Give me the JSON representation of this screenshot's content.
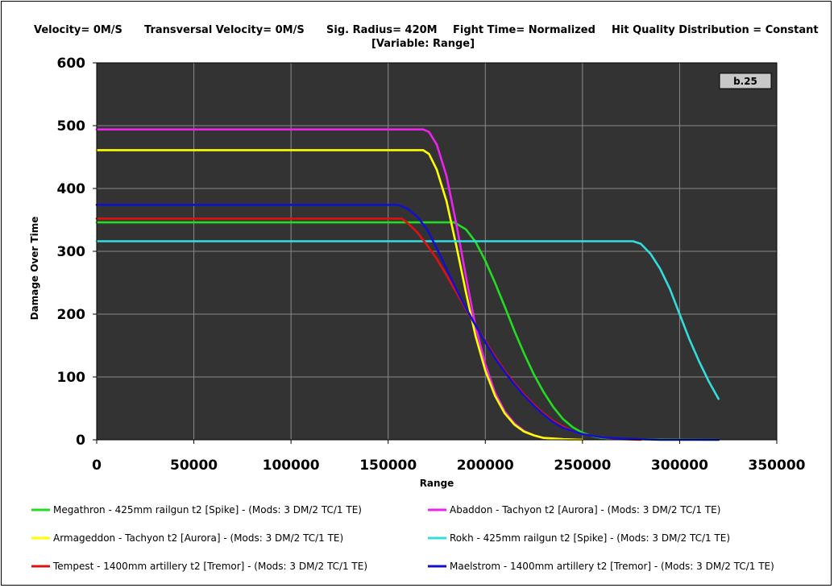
{
  "header": {
    "items": [
      "Velocity= 0M/S",
      "Transversal Velocity= 0M/S",
      "Sig. Radius= 420M",
      "Fight Time= Normalized",
      "Hit Quality Distribution = Constant"
    ],
    "subtitle": "[Variable: Range]"
  },
  "badge": {
    "label": "b.25"
  },
  "chart_data": {
    "type": "line",
    "xlabel": "Range",
    "ylabel": "Damage Over Time",
    "xlim": [
      0,
      350000
    ],
    "ylim": [
      0,
      600
    ],
    "xticks": [
      "0",
      "50000",
      "100000",
      "150000",
      "200000",
      "250000",
      "300000",
      "350000"
    ],
    "yticks": [
      "0",
      "100",
      "200",
      "300",
      "400",
      "500",
      "600"
    ],
    "grid": true,
    "legend_position": "bottom",
    "background_color": "#333333",
    "series": [
      {
        "name": "Megathron - 425mm railgun t2 [Spike] - (Mods: 3 DM/2 TC/1 TE)",
        "color": "#22dd22",
        "points": [
          [
            0,
            346
          ],
          [
            184000,
            346
          ],
          [
            190000,
            335
          ],
          [
            195000,
            315
          ],
          [
            200000,
            285
          ],
          [
            205000,
            250
          ],
          [
            210000,
            212
          ],
          [
            215000,
            173
          ],
          [
            220000,
            137
          ],
          [
            225000,
            104
          ],
          [
            230000,
            76
          ],
          [
            235000,
            52
          ],
          [
            240000,
            33
          ],
          [
            245000,
            20
          ],
          [
            250000,
            11
          ],
          [
            255000,
            6
          ],
          [
            260000,
            3
          ],
          [
            270000,
            1
          ],
          [
            320000,
            0
          ]
        ]
      },
      {
        "name": "Abaddon - Tachyon t2 [Aurora] - (Mods: 3 DM/2 TC/1 TE)",
        "color": "#ee22ee",
        "points": [
          [
            0,
            494
          ],
          [
            168000,
            494
          ],
          [
            171000,
            490
          ],
          [
            175000,
            470
          ],
          [
            180000,
            420
          ],
          [
            185000,
            345
          ],
          [
            190000,
            260
          ],
          [
            195000,
            180
          ],
          [
            200000,
            120
          ],
          [
            205000,
            75
          ],
          [
            210000,
            45
          ],
          [
            215000,
            26
          ],
          [
            220000,
            14
          ],
          [
            225000,
            7
          ],
          [
            230000,
            3
          ],
          [
            240000,
            1
          ],
          [
            250000,
            0
          ]
        ]
      },
      {
        "name": "Armageddon - Tachyon t2 [Aurora] - (Mods: 3 DM/2 TC/1 TE)",
        "color": "#ffff00",
        "points": [
          [
            0,
            461
          ],
          [
            168000,
            461
          ],
          [
            171000,
            455
          ],
          [
            175000,
            430
          ],
          [
            180000,
            380
          ],
          [
            185000,
            310
          ],
          [
            190000,
            235
          ],
          [
            195000,
            165
          ],
          [
            200000,
            110
          ],
          [
            205000,
            70
          ],
          [
            210000,
            42
          ],
          [
            215000,
            24
          ],
          [
            220000,
            13
          ],
          [
            225000,
            7
          ],
          [
            230000,
            3
          ],
          [
            240000,
            1
          ],
          [
            250000,
            0
          ]
        ]
      },
      {
        "name": "Rokh - 425mm railgun t2 [Spike] - (Mods: 3 DM/2 TC/1 TE)",
        "color": "#33dddd",
        "points": [
          [
            0,
            316
          ],
          [
            276000,
            316
          ],
          [
            280000,
            312
          ],
          [
            285000,
            296
          ],
          [
            290000,
            272
          ],
          [
            295000,
            240
          ],
          [
            300000,
            200
          ],
          [
            305000,
            160
          ],
          [
            310000,
            125
          ],
          [
            315000,
            93
          ],
          [
            320000,
            65
          ]
        ]
      },
      {
        "name": "Tempest - 1400mm artillery t2 [Tremor] - (Mods: 3 DM/2 TC/1 TE)",
        "color": "#dd1111",
        "points": [
          [
            0,
            352
          ],
          [
            157000,
            352
          ],
          [
            160000,
            345
          ],
          [
            165000,
            330
          ],
          [
            170000,
            310
          ],
          [
            175000,
            288
          ],
          [
            180000,
            262
          ],
          [
            185000,
            235
          ],
          [
            190000,
            208
          ],
          [
            195000,
            182
          ],
          [
            200000,
            157
          ],
          [
            205000,
            133
          ],
          [
            210000,
            110
          ],
          [
            215000,
            90
          ],
          [
            220000,
            72
          ],
          [
            225000,
            56
          ],
          [
            230000,
            42
          ],
          [
            235000,
            30
          ],
          [
            240000,
            21
          ],
          [
            245000,
            14
          ],
          [
            250000,
            9
          ],
          [
            260000,
            4
          ],
          [
            270000,
            1
          ],
          [
            280000,
            0
          ]
        ]
      },
      {
        "name": "Maelstrom - 1400mm artillery t2 [Tremor] - (Mods: 3 DM/2 TC/1 TE)",
        "color": "#1111cc",
        "points": [
          [
            0,
            374
          ],
          [
            155000,
            374
          ],
          [
            160000,
            368
          ],
          [
            165000,
            355
          ],
          [
            170000,
            335
          ],
          [
            175000,
            305
          ],
          [
            180000,
            272
          ],
          [
            185000,
            240
          ],
          [
            190000,
            210
          ],
          [
            195000,
            182
          ],
          [
            200000,
            155
          ],
          [
            205000,
            130
          ],
          [
            210000,
            108
          ],
          [
            215000,
            88
          ],
          [
            220000,
            70
          ],
          [
            225000,
            54
          ],
          [
            230000,
            40
          ],
          [
            235000,
            28
          ],
          [
            240000,
            19
          ],
          [
            250000,
            9
          ],
          [
            260000,
            4
          ],
          [
            270000,
            2
          ],
          [
            280000,
            1
          ],
          [
            290000,
            0
          ],
          [
            320000,
            0
          ]
        ]
      }
    ]
  }
}
